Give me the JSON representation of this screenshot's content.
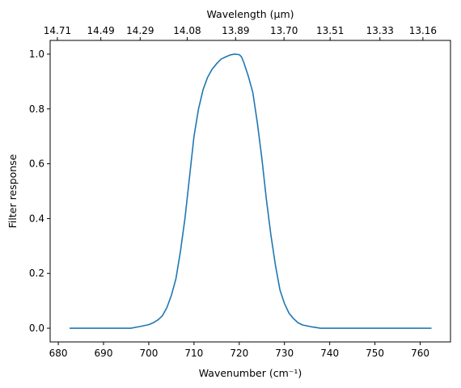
{
  "chart_data": {
    "type": "line",
    "xlabel": "Wavenumber (cm⁻¹)",
    "ylabel": "Filter response",
    "top_xlabel": "Wavelength (μm)",
    "xlim": [
      678.2,
      766.7
    ],
    "ylim": [
      -0.05,
      1.05
    ],
    "x_ticks": [
      680,
      690,
      700,
      710,
      720,
      730,
      740,
      750,
      760
    ],
    "y_ticks": [
      0.0,
      0.2,
      0.4,
      0.6,
      0.8,
      1.0
    ],
    "y_tick_labels": [
      "0.0",
      "0.2",
      "0.4",
      "0.6",
      "0.8",
      "1.0"
    ],
    "top_ticks": [
      {
        "wavenumber": 679.8,
        "label": "14.71"
      },
      {
        "wavenumber": 689.4,
        "label": "14.49"
      },
      {
        "wavenumber": 698.1,
        "label": "14.29"
      },
      {
        "wavenumber": 708.5,
        "label": "14.08"
      },
      {
        "wavenumber": 719.2,
        "label": "13.89"
      },
      {
        "wavenumber": 729.9,
        "label": "13.70"
      },
      {
        "wavenumber": 740.1,
        "label": "13.51"
      },
      {
        "wavenumber": 751.1,
        "label": "13.33"
      },
      {
        "wavenumber": 760.6,
        "label": "13.16"
      }
    ],
    "grid": false,
    "series": [
      {
        "color": "#1f77b4",
        "x": [
          682.5,
          690,
          696,
          698,
          700,
          701,
          702,
          703,
          704,
          705,
          706,
          707,
          708,
          709,
          710,
          711,
          712,
          713,
          714,
          715,
          716,
          717,
          718,
          719,
          720,
          720.5,
          721,
          722,
          723,
          724,
          725,
          726,
          727,
          728,
          729,
          730,
          731,
          732,
          733,
          734,
          736,
          738,
          745,
          755,
          762.5
        ],
        "y": [
          0.0,
          0.0,
          0.0,
          0.006,
          0.013,
          0.02,
          0.03,
          0.045,
          0.075,
          0.12,
          0.18,
          0.28,
          0.4,
          0.55,
          0.7,
          0.8,
          0.87,
          0.915,
          0.945,
          0.965,
          0.982,
          0.99,
          0.997,
          1.0,
          0.998,
          0.99,
          0.97,
          0.92,
          0.86,
          0.75,
          0.62,
          0.47,
          0.34,
          0.23,
          0.14,
          0.09,
          0.055,
          0.035,
          0.02,
          0.012,
          0.005,
          0.0,
          0.0,
          0.0,
          0.0
        ]
      }
    ]
  }
}
